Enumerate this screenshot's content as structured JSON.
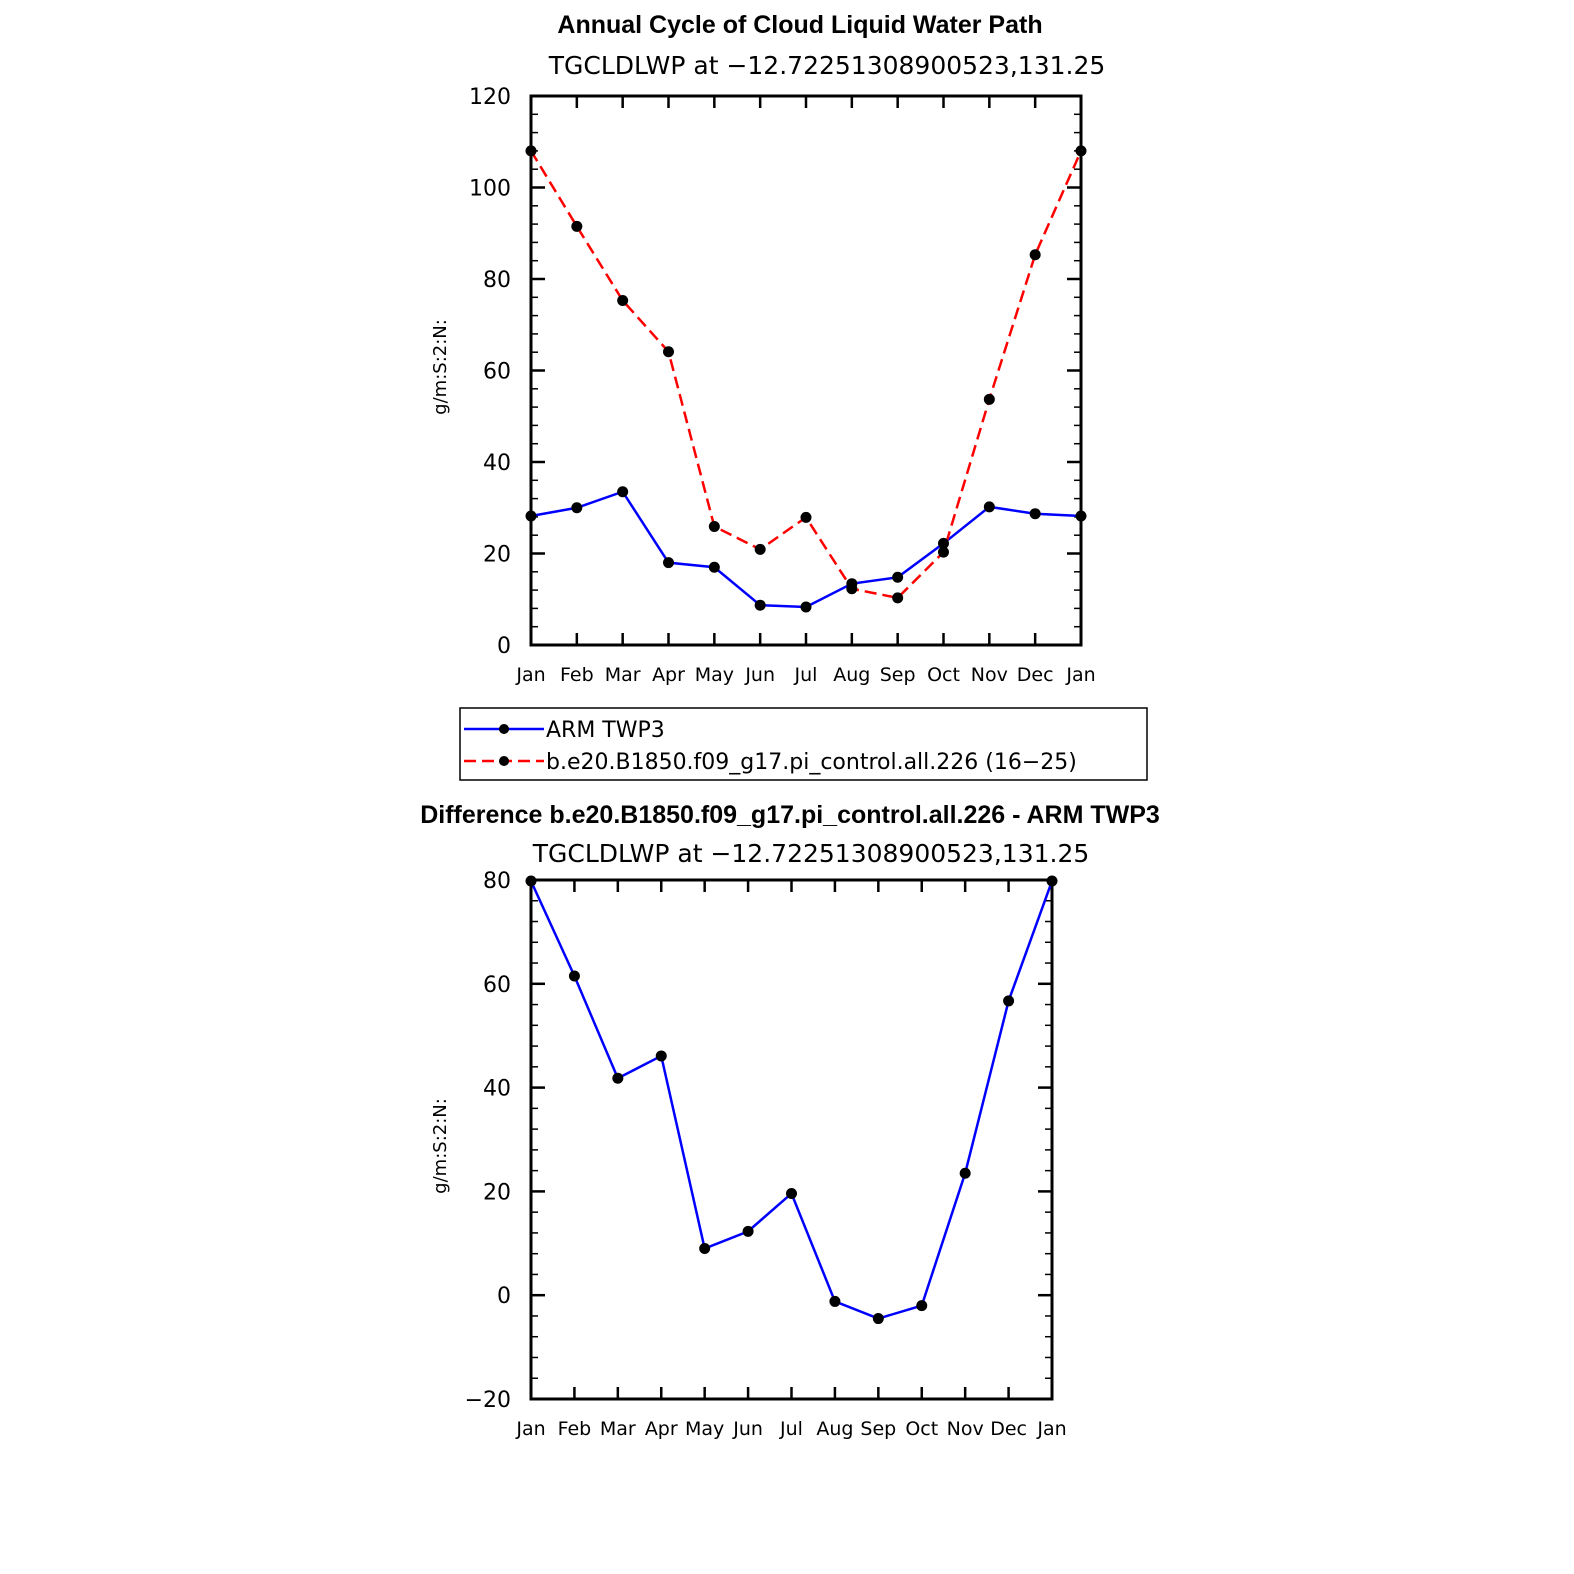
{
  "chart_data": [
    {
      "type": "line",
      "title": "Annual Cycle of Cloud Liquid Water Path",
      "subtitle": "TGCLDLWP at −12.72251308900523,131.25",
      "xlabel": "",
      "ylabel": "g/m:S:2:N:",
      "categories": [
        "Jan",
        "Feb",
        "Mar",
        "Apr",
        "May",
        "Jun",
        "Jul",
        "Aug",
        "Sep",
        "Oct",
        "Nov",
        "Dec",
        "Jan"
      ],
      "ylim": [
        0,
        120
      ],
      "yticks": [
        "0",
        "20",
        "40",
        "60",
        "80",
        "100",
        "120"
      ],
      "legend_position": "bottom",
      "series": [
        {
          "name": "ARM TWP3",
          "color": "#0000ff",
          "dash": "solid",
          "values": [
            28.2,
            30.0,
            33.5,
            18.0,
            17.0,
            8.7,
            8.3,
            13.4,
            14.8,
            22.2,
            30.2,
            28.7,
            28.2
          ]
        },
        {
          "name": "b.e20.B1850.f09_g17.pi_control.all.226 (16−25)",
          "color": "#ff0000",
          "dash": "dashed",
          "values": [
            108.0,
            91.5,
            75.3,
            64.1,
            25.9,
            20.9,
            27.9,
            12.3,
            10.3,
            20.3,
            53.7,
            85.3,
            108.0
          ]
        }
      ]
    },
    {
      "type": "line",
      "title": "Difference b.e20.B1850.f09_g17.pi_control.all.226 - ARM TWP3",
      "subtitle": "TGCLDLWP at −12.72251308900523,131.25",
      "xlabel": "",
      "ylabel": "g/m:S:2:N:",
      "categories": [
        "Jan",
        "Feb",
        "Mar",
        "Apr",
        "May",
        "Jun",
        "Jul",
        "Aug",
        "Sep",
        "Oct",
        "Nov",
        "Dec",
        "Jan"
      ],
      "ylim": [
        -20,
        80
      ],
      "yticks": [
        "−20",
        "0",
        "20",
        "40",
        "60",
        "80"
      ],
      "series": [
        {
          "color": "#0000ff",
          "dash": "solid",
          "values": [
            79.8,
            61.5,
            41.8,
            46.1,
            9.0,
            12.3,
            19.6,
            -1.2,
            -4.5,
            -2.0,
            23.5,
            56.7,
            79.8
          ]
        }
      ]
    }
  ]
}
